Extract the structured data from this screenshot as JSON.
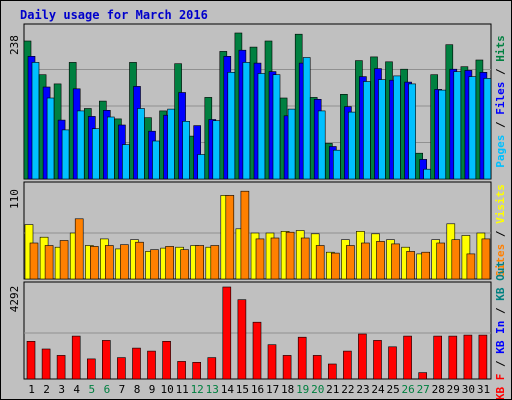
{
  "title": "Daily usage for March 2016",
  "colors": {
    "hits": "#008040",
    "files": "#0000ff",
    "pages": "#00c0ff",
    "visits": "#ffff00",
    "sites": "#ff8000",
    "kbout": "#008080",
    "kbin": "#0000ff",
    "kbf": "#ff0000"
  },
  "chart_data": [
    {
      "type": "bar",
      "categories": [
        "1",
        "2",
        "3",
        "4",
        "5",
        "6",
        "7",
        "8",
        "9",
        "10",
        "11",
        "12",
        "13",
        "14",
        "15",
        "16",
        "17",
        "18",
        "19",
        "20",
        "21",
        "22",
        "23",
        "24",
        "25",
        "26",
        "27",
        "28",
        "29",
        "30",
        "31"
      ],
      "weekend_days": [
        "5",
        "6",
        "12",
        "13",
        "19",
        "20",
        "26",
        "27"
      ],
      "ymax_label": "238",
      "ylim": [
        0,
        238
      ],
      "side_label": [
        {
          "text": "Pages",
          "color": "#00c0ff"
        },
        {
          "text": " / ",
          "color": "#000000"
        },
        {
          "text": "Files",
          "color": "#0000ff"
        },
        {
          "text": " / ",
          "color": "#000000"
        },
        {
          "text": "Hits",
          "color": "#008040"
        }
      ],
      "series": [
        {
          "name": "Hits",
          "color": "#008040",
          "values": [
            225,
            170,
            155,
            190,
            115,
            127,
            98,
            190,
            100,
            111,
            188,
            70,
            133,
            208,
            238,
            215,
            225,
            132,
            236,
            133,
            58,
            138,
            193,
            199,
            191,
            179,
            42,
            170,
            219,
            183,
            194
          ]
        },
        {
          "name": "Files",
          "color": "#0000ff",
          "values": [
            200,
            150,
            96,
            147,
            102,
            112,
            88,
            151,
            78,
            104,
            141,
            87,
            97,
            200,
            210,
            189,
            175,
            103,
            189,
            130,
            53,
            118,
            167,
            180,
            161,
            158,
            32,
            146,
            179,
            177,
            174
          ]
        },
        {
          "name": "Pages",
          "color": "#00c0ff",
          "values": [
            190,
            132,
            80,
            111,
            82,
            101,
            56,
            115,
            62,
            114,
            94,
            40,
            95,
            174,
            190,
            172,
            170,
            114,
            198,
            111,
            47,
            109,
            159,
            162,
            168,
            155,
            16,
            145,
            175,
            167,
            164
          ]
        }
      ]
    },
    {
      "type": "bar",
      "ymax_label": "110",
      "ylim": [
        0,
        110
      ],
      "side_label": [
        {
          "text": "Sites",
          "color": "#ff8000"
        },
        {
          "text": " / ",
          "color": "#000000"
        },
        {
          "text": "Visits",
          "color": "#ffff00"
        }
      ],
      "series": [
        {
          "name": "Visits",
          "color": "#ffff00",
          "values": [
            65,
            50,
            38,
            55,
            40,
            48,
            36,
            47,
            33,
            37,
            38,
            40,
            38,
            100,
            60,
            55,
            55,
            57,
            58,
            54,
            32,
            47,
            57,
            54,
            47,
            38,
            30,
            47,
            66,
            52,
            55
          ]
        },
        {
          "name": "Sites",
          "color": "#ff8000",
          "values": [
            43,
            40,
            46,
            72,
            39,
            40,
            41,
            44,
            35,
            39,
            35,
            40,
            40,
            100,
            105,
            48,
            49,
            56,
            49,
            40,
            31,
            40,
            43,
            45,
            42,
            33,
            32,
            43,
            47,
            30,
            48
          ]
        }
      ]
    },
    {
      "type": "bar",
      "ymax_label": "4292",
      "ylim": [
        0,
        4292
      ],
      "side_label": [
        {
          "text": "KB F",
          "color": "#ff0000"
        },
        {
          "text": " / ",
          "color": "#000000"
        },
        {
          "text": "KB In",
          "color": "#0000ff"
        },
        {
          "text": " / ",
          "color": "#000000"
        },
        {
          "text": "KB Out",
          "color": "#008080"
        }
      ],
      "series": [
        {
          "name": "KB F",
          "color": "#ff0000",
          "values": [
            1760,
            1400,
            1100,
            2000,
            940,
            1800,
            1000,
            1440,
            1300,
            1760,
            820,
            780,
            1000,
            4292,
            3700,
            2650,
            1600,
            1100,
            1950,
            1100,
            700,
            1300,
            2100,
            1800,
            1500,
            2000,
            300,
            2000,
            2000,
            2050,
            2050
          ]
        }
      ]
    }
  ]
}
